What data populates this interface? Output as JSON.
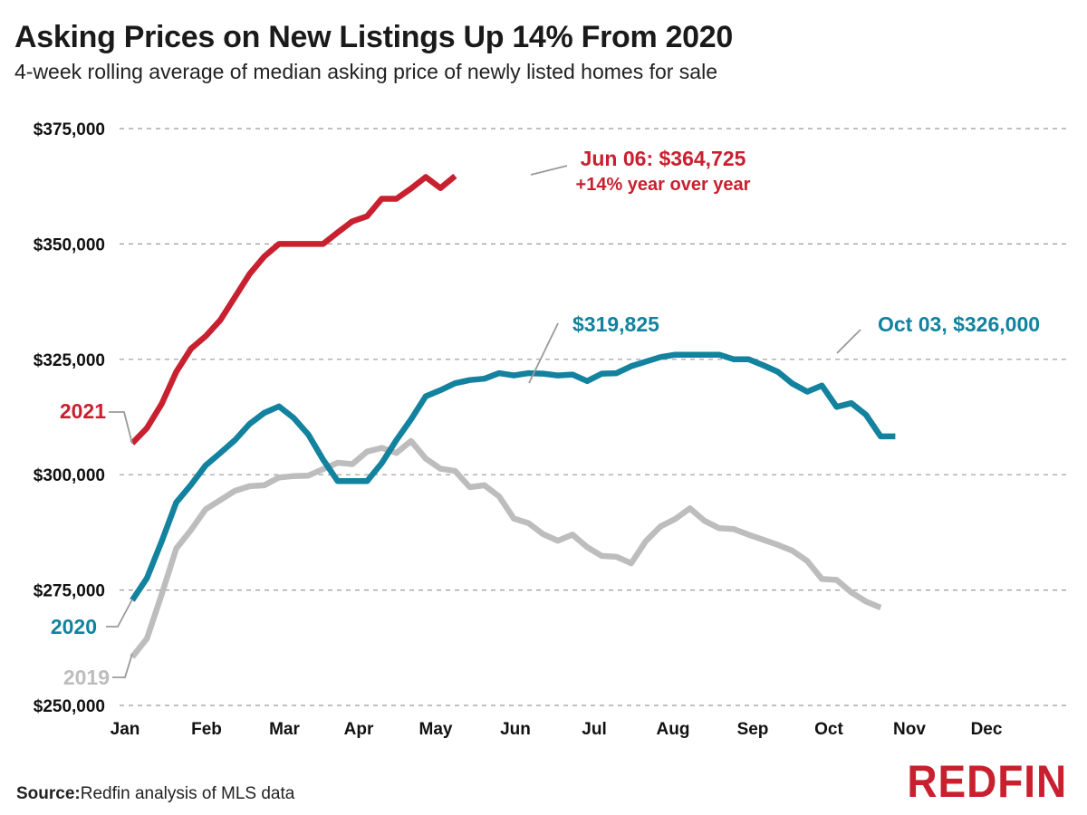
{
  "title": "Asking Prices on New Listings Up 14% From 2020",
  "subtitle": "4-week rolling average of median asking price of newly listed homes for sale",
  "source_label": "Source:",
  "source_text": "Redfin analysis of MLS data",
  "brand": "REDFIN",
  "colors": {
    "2021": "#c8202f",
    "2020": "#12829f",
    "2019": "#bdbdbd",
    "grid": "#9a9a9a"
  },
  "chart_data": {
    "type": "line",
    "title": "Asking Prices on New Listings Up 14% From 2020",
    "subtitle": "4-week rolling average of median asking price of newly listed homes for sale",
    "ylim": [
      250000,
      375000
    ],
    "y_ticks": [
      250000,
      275000,
      300000,
      325000,
      350000,
      375000
    ],
    "y_tick_labels": [
      "$250,000",
      "$275,000",
      "$300,000",
      "$325,000",
      "$350,000",
      "$375,000"
    ],
    "x_tick_labels": [
      "Jan",
      "Feb",
      "Mar",
      "Apr",
      "May",
      "Jun",
      "Jul",
      "Aug",
      "Sep",
      "Oct",
      "Nov",
      "Dec"
    ],
    "x_unit": "week of year",
    "grid": true,
    "series": [
      {
        "name": "2019",
        "values": [
          260500,
          264500,
          274000,
          284000,
          288000,
          292500,
          294500,
          296500,
          297500,
          297700,
          299400,
          299700,
          299800,
          301200,
          302600,
          302300,
          305000,
          305800,
          304700,
          307300,
          303500,
          301300,
          300800,
          297300,
          297700,
          295300,
          290500,
          289500,
          287100,
          285700,
          287000,
          284300,
          282400,
          282200,
          280800,
          285600,
          288800,
          290400,
          292700,
          290000,
          288400,
          288200,
          287000,
          285900,
          284800,
          283500,
          281300,
          277400,
          277200,
          274500,
          272500,
          271200
        ]
      },
      {
        "name": "2020",
        "values": [
          272800,
          277600,
          285500,
          294000,
          297800,
          302000,
          304700,
          307500,
          311000,
          313400,
          314800,
          312300,
          308700,
          303300,
          298600,
          298600,
          298600,
          302500,
          307500,
          312000,
          317000,
          318300,
          319825,
          320500,
          320800,
          322000,
          321500,
          322000,
          321900,
          321500,
          321700,
          320300,
          321900,
          322000,
          323500,
          324500,
          325500,
          326000,
          326000,
          326000,
          326000,
          325000,
          325000,
          323700,
          322300,
          319700,
          318000,
          319300,
          314700,
          315500,
          313000,
          308300,
          308300
        ]
      },
      {
        "name": "2021",
        "values": [
          306800,
          310100,
          315300,
          322300,
          327300,
          330000,
          333500,
          338500,
          343500,
          347300,
          350000,
          350000,
          350000,
          350000,
          352500,
          354900,
          356000,
          359800,
          359800,
          362000,
          364500,
          362100,
          364725
        ]
      }
    ],
    "annotations": {
      "jun06_2021": {
        "line1": "Jun 06: $364,725",
        "line2": "+14% year over year"
      },
      "peak_2020_mid": "$319,825",
      "oct03_2020": "Oct 03, $326,000",
      "label_2021": "2021",
      "label_2020": "2020",
      "label_2019": "2019"
    }
  }
}
